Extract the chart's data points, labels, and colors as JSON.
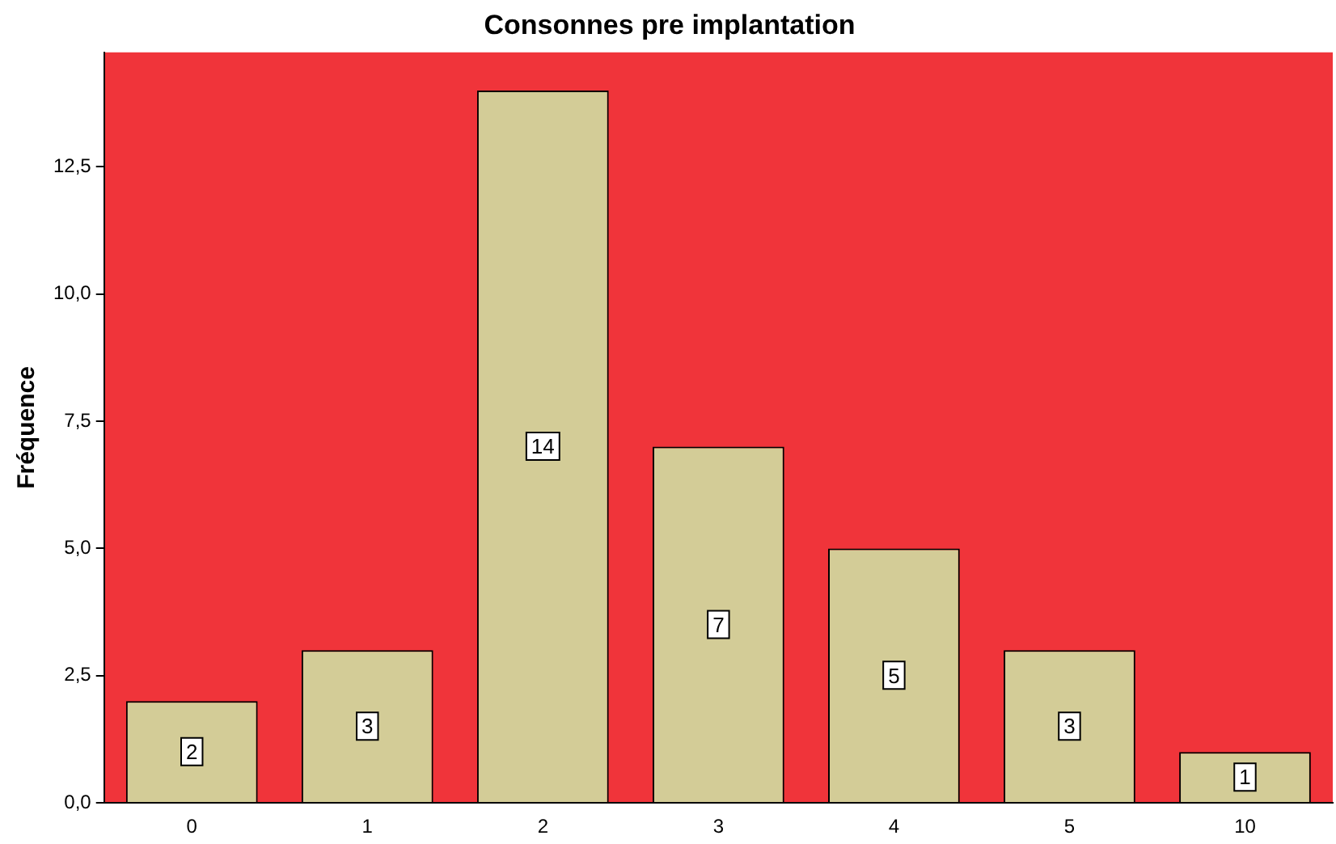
{
  "chart_data": {
    "type": "bar",
    "title": "Consonnes pre implantation",
    "ylabel": "Fréquence",
    "categories": [
      "0",
      "1",
      "2",
      "3",
      "4",
      "5",
      "10"
    ],
    "values": [
      2,
      3,
      14,
      7,
      5,
      3,
      1
    ],
    "color": "#d3cc97",
    "ylim": [
      0,
      14.75
    ],
    "yticks": [
      {
        "value": 0,
        "label": "0,0"
      },
      {
        "value": 2.5,
        "label": "2,5"
      },
      {
        "value": 5,
        "label": "5,0"
      },
      {
        "value": 7.5,
        "label": "7,5"
      },
      {
        "value": 10,
        "label": "10,0"
      },
      {
        "value": 12.5,
        "label": "12,5"
      }
    ],
    "grid": false,
    "legend": false,
    "data_labels": true
  }
}
